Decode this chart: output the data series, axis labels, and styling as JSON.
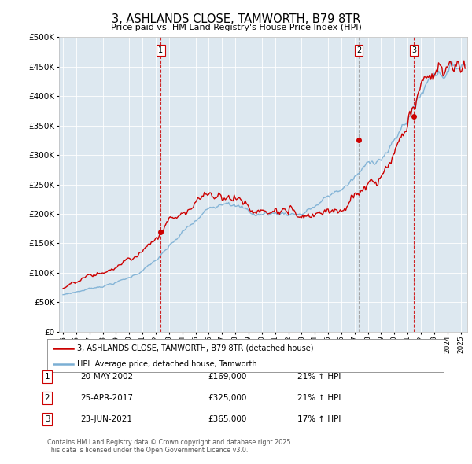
{
  "title_line1": "3, ASHLANDS CLOSE, TAMWORTH, B79 8TR",
  "title_line2": "Price paid vs. HM Land Registry's House Price Index (HPI)",
  "legend_label_red": "3, ASHLANDS CLOSE, TAMWORTH, B79 8TR (detached house)",
  "legend_label_blue": "HPI: Average price, detached house, Tamworth",
  "footer": "Contains HM Land Registry data © Crown copyright and database right 2025.\nThis data is licensed under the Open Government Licence v3.0.",
  "transactions": [
    {
      "num": 1,
      "date": "20-MAY-2002",
      "price": "£169,000",
      "hpi": "21% ↑ HPI",
      "year": 2002.38
    },
    {
      "num": 2,
      "date": "25-APR-2017",
      "price": "£325,000",
      "hpi": "21% ↑ HPI",
      "year": 2017.32
    },
    {
      "num": 3,
      "date": "23-JUN-2021",
      "price": "£365,000",
      "hpi": "17% ↑ HPI",
      "year": 2021.48
    }
  ],
  "sale_prices": [
    169000,
    325000,
    365000
  ],
  "background_color": "#dde8f0",
  "red_color": "#cc0000",
  "blue_color": "#7bafd4",
  "vline_color_red": "#cc0000",
  "vline_color_grey": "#999999",
  "ylim": [
    0,
    500000
  ],
  "xlim_start": 1994.7,
  "xlim_end": 2025.5,
  "ytick_step": 50000,
  "fig_width": 6.0,
  "fig_height": 5.9
}
